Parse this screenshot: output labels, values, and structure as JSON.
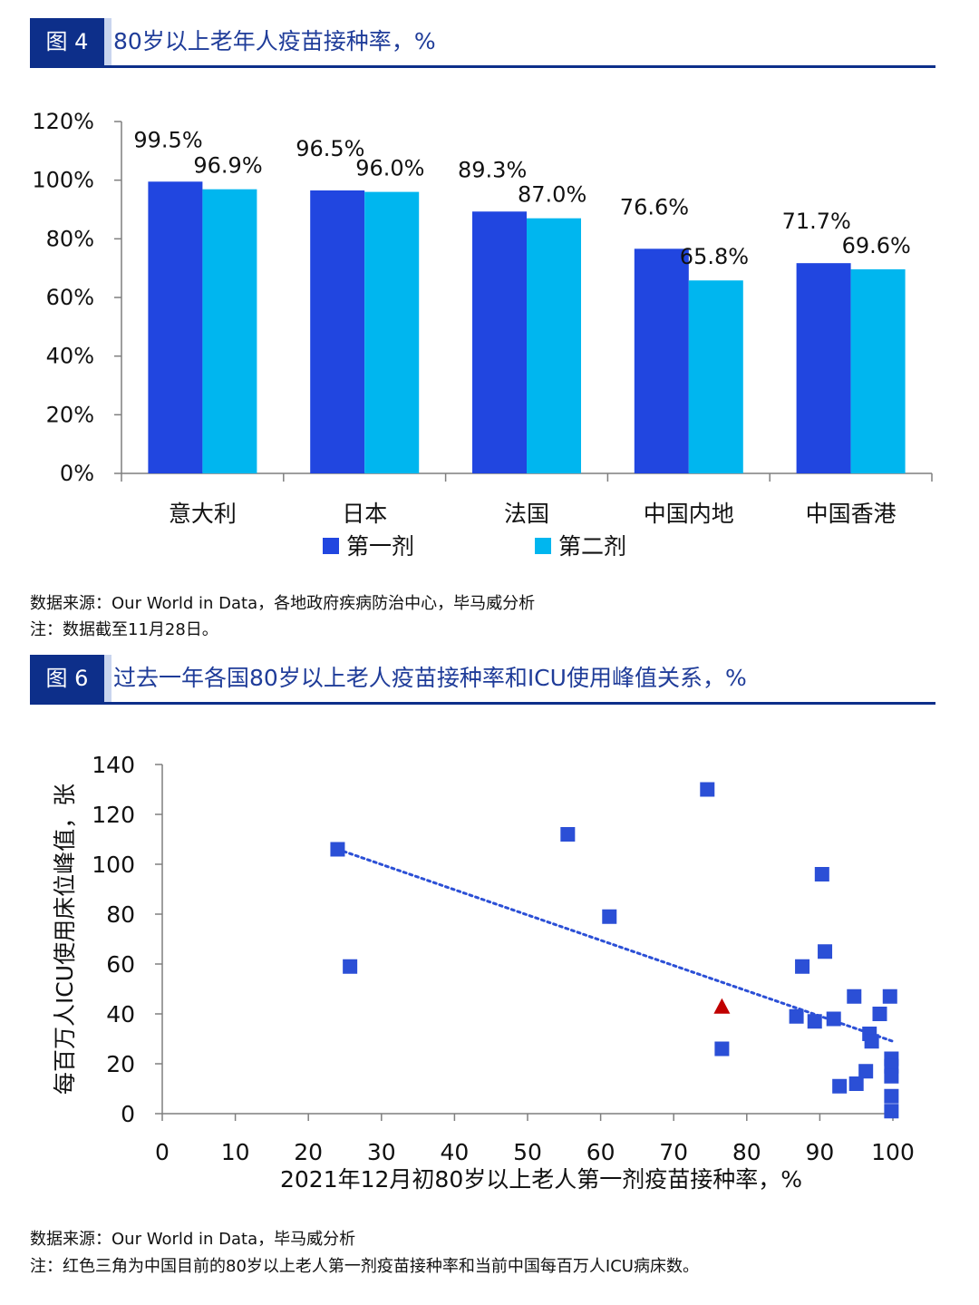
{
  "figure1": {
    "tag": "图 4",
    "title": "80岁以上老年人疫苗接种率，%",
    "source": "数据来源：Our World in Data，各地政府疾病防治中心，毕马威分析",
    "note": "注：数据截至11月28日。"
  },
  "figure2": {
    "tag": "图 6",
    "title": "过去一年各国80岁以上老人疫苗接种率和ICU使用峰值关系，%",
    "source": "数据来源：Our World in Data，毕马威分析",
    "note": "注：红色三角为中国目前的80岁以上老人第一剂疫苗接种率和当前中国每百万人ICU病床数。"
  },
  "colors": {
    "dose1": "#2146e0",
    "dose2": "#00b6ef",
    "scatter": "#2b4fd6",
    "china": "#c00000",
    "header": "#0d2f8a"
  },
  "chart_data": [
    {
      "type": "bar",
      "categories": [
        "意大利",
        "日本",
        "法国",
        "中国内地",
        "中国香港"
      ],
      "series": [
        {
          "name": "第一剂",
          "values": [
            99.5,
            96.5,
            89.3,
            76.6,
            71.7
          ],
          "labels": [
            "99.5%",
            "96.5%",
            "89.3%",
            "76.6%",
            "71.7%"
          ]
        },
        {
          "name": "第二剂",
          "values": [
            96.9,
            96.0,
            87.0,
            65.8,
            69.6
          ],
          "labels": [
            "96.9%",
            "96.0%",
            "87.0%",
            "65.8%",
            "69.6%"
          ]
        }
      ],
      "ylim": [
        0,
        120
      ],
      "yticks": [
        "0%",
        "20%",
        "40%",
        "60%",
        "80%",
        "100%",
        "120%"
      ],
      "legend_position": "bottom"
    },
    {
      "type": "scatter",
      "xlabel": "2021年12月初80岁以上老人第一剂疫苗接种率，%",
      "ylabel": "每百万人ICU使用床位峰值，张",
      "xlim": [
        0,
        100
      ],
      "ylim": [
        0,
        140
      ],
      "xticks": [
        "0",
        "10",
        "20",
        "30",
        "40",
        "50",
        "60",
        "70",
        "80",
        "90",
        "100"
      ],
      "yticks": [
        "0",
        "20",
        "40",
        "60",
        "80",
        "100",
        "120",
        "140"
      ],
      "points": [
        [
          24,
          106
        ],
        [
          25.7,
          59
        ],
        [
          55.5,
          112
        ],
        [
          61.2,
          79
        ],
        [
          74.6,
          130
        ],
        [
          76.6,
          26
        ],
        [
          86.8,
          39
        ],
        [
          87.6,
          59
        ],
        [
          89.3,
          37
        ],
        [
          90.3,
          96
        ],
        [
          90.7,
          65
        ],
        [
          91.9,
          38
        ],
        [
          92.7,
          11
        ],
        [
          94.7,
          47
        ],
        [
          95,
          12
        ],
        [
          96.3,
          17
        ],
        [
          96.8,
          32
        ],
        [
          97.1,
          29
        ],
        [
          98.2,
          40
        ],
        [
          99.6,
          47
        ],
        [
          99.8,
          22
        ],
        [
          99.8,
          19
        ],
        [
          99.8,
          15
        ],
        [
          99.8,
          7
        ],
        [
          99.8,
          1
        ]
      ],
      "highlight": {
        "x": 76.6,
        "y": 43
      },
      "trendline": {
        "x": [
          24,
          100
        ],
        "y": [
          106,
          29
        ]
      }
    }
  ]
}
